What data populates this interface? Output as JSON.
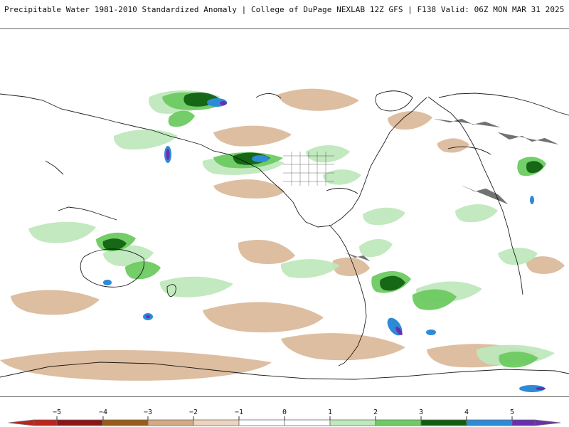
{
  "header": {
    "title": "Precipitable Water 1981-2010 Standardized Anomaly | College of DuPage NEXLAB  12Z GFS | F138 Valid: 06Z MON MAR 31 2025"
  },
  "map": {
    "projection": "global cylindrical",
    "coastline_color": "#000000",
    "anomaly_colors": {
      "neg5": "#c0221c",
      "neg4": "#8c1515",
      "neg3": "#9a5a18",
      "neg2": "#d2aa86",
      "neg1": "#ecd4bf",
      "zero": "#ffffff",
      "pos1": "#bfe8bc",
      "pos2": "#6dcb62",
      "pos3": "#2a9a2a",
      "pos4": "#0f5f0f",
      "pos5": "#2d8ad6",
      "pos6": "#6a2fb0"
    }
  },
  "colorbar": {
    "labels": [
      "−5",
      "−4",
      "−3",
      "−2",
      "−1",
      "0",
      "1",
      "2",
      "3",
      "4",
      "5"
    ],
    "segments": [
      {
        "from": -6,
        "to": -5,
        "color": "#c0221c"
      },
      {
        "from": -5,
        "to": -4,
        "color": "#8c1515"
      },
      {
        "from": -4,
        "to": -3,
        "color": "#9a5a18"
      },
      {
        "from": -3,
        "to": -2,
        "color": "#d2aa86"
      },
      {
        "from": -2,
        "to": -1,
        "color": "#ecd4bf"
      },
      {
        "from": -1,
        "to": 0,
        "color": "#ffffff"
      },
      {
        "from": 0,
        "to": 1,
        "color": "#ffffff"
      },
      {
        "from": 1,
        "to": 2,
        "color": "#bfe8bc"
      },
      {
        "from": 2,
        "to": 3,
        "color": "#6dcb62"
      },
      {
        "from": 3,
        "to": 4,
        "color": "#0f5f0f"
      },
      {
        "from": 4,
        "to": 5,
        "color": "#2d8ad6"
      },
      {
        "from": 5,
        "to": 6,
        "color": "#6a2fb0"
      }
    ]
  }
}
